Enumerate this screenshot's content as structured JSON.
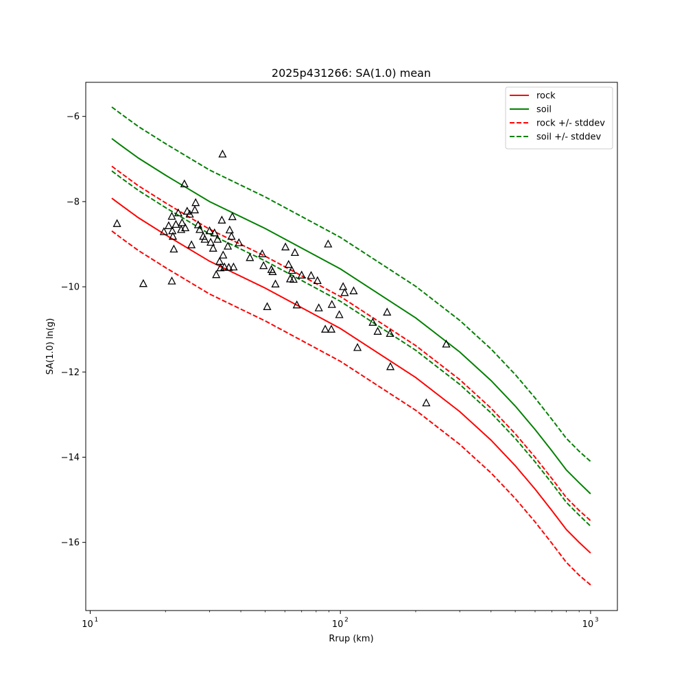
{
  "chart_data": {
    "type": "scatter",
    "title": "2025p431266: SA(1.0) mean",
    "xlabel": "Rrup (km)",
    "ylabel": "SA(1.0) ln(g)",
    "xscale": "log",
    "xlim": [
      9.6,
      1280
    ],
    "ylim": [
      -17.6,
      -5.2
    ],
    "x_ticks": [
      {
        "value": 10,
        "base": "10",
        "exp": "1"
      },
      {
        "value": 100,
        "base": "10",
        "exp": "2"
      },
      {
        "value": 1000,
        "base": "10",
        "exp": "3"
      }
    ],
    "y_ticks": [
      {
        "value": -6,
        "label": "−6"
      },
      {
        "value": -8,
        "label": "−8"
      },
      {
        "value": -10,
        "label": "−10"
      },
      {
        "value": -12,
        "label": "−12"
      },
      {
        "value": -14,
        "label": "−14"
      },
      {
        "value": -16,
        "label": "−16"
      }
    ],
    "grid": false,
    "legend_position": "top-right",
    "series": [
      {
        "name": "rock",
        "color": "#ff0000",
        "dash": "solid",
        "x": [
          12.2,
          13.2,
          15.6,
          20,
          30,
          50,
          100,
          200,
          300,
          400,
          500,
          600,
          700,
          800,
          900,
          1000
        ],
        "y": [
          -7.92,
          -8.07,
          -8.38,
          -8.78,
          -9.4,
          -10.03,
          -10.98,
          -12.13,
          -12.93,
          -13.6,
          -14.2,
          -14.75,
          -15.25,
          -15.7,
          -16.0,
          -16.25
        ]
      },
      {
        "name": "soil",
        "color": "#008000",
        "dash": "solid",
        "x": [
          12.2,
          13.2,
          15.6,
          20,
          30,
          50,
          100,
          200,
          300,
          400,
          500,
          600,
          700,
          800,
          900,
          1000
        ],
        "y": [
          -6.52,
          -6.67,
          -6.98,
          -7.38,
          -8.0,
          -8.63,
          -9.58,
          -10.73,
          -11.53,
          -12.2,
          -12.8,
          -13.35,
          -13.85,
          -14.3,
          -14.6,
          -14.86
        ]
      },
      {
        "name": "rock +/- stddev",
        "color": "#ff0000",
        "dash": "dashed",
        "x": [
          12.2,
          13.2,
          15.6,
          20,
          30,
          50,
          100,
          200,
          300,
          400,
          500,
          600,
          700,
          800,
          900,
          1000
        ],
        "y": [
          -7.17,
          -7.32,
          -7.63,
          -8.03,
          -8.65,
          -9.28,
          -10.23,
          -11.38,
          -12.18,
          -12.85,
          -13.45,
          -14.0,
          -14.5,
          -14.95,
          -15.25,
          -15.49
        ]
      },
      {
        "name": "",
        "color": "#ff0000",
        "dash": "dashed",
        "x": [
          12.2,
          13.2,
          15.6,
          20,
          30,
          50,
          100,
          200,
          300,
          400,
          500,
          600,
          700,
          800,
          900,
          1000
        ],
        "y": [
          -8.69,
          -8.84,
          -9.15,
          -9.55,
          -10.17,
          -10.8,
          -11.75,
          -12.9,
          -13.7,
          -14.37,
          -14.97,
          -15.52,
          -16.02,
          -16.47,
          -16.77,
          -17.0
        ]
      },
      {
        "name": "soil +/- stddev",
        "color": "#008000",
        "dash": "dashed",
        "x": [
          12.2,
          13.2,
          15.6,
          20,
          30,
          50,
          100,
          200,
          300,
          400,
          500,
          600,
          700,
          800,
          900,
          1000
        ],
        "y": [
          -5.78,
          -5.93,
          -6.24,
          -6.64,
          -7.26,
          -7.89,
          -8.84,
          -9.99,
          -10.79,
          -11.46,
          -12.06,
          -12.61,
          -13.11,
          -13.56,
          -13.86,
          -14.1
        ]
      },
      {
        "name": "",
        "color": "#008000",
        "dash": "dashed",
        "x": [
          12.2,
          13.2,
          15.6,
          20,
          30,
          50,
          100,
          200,
          300,
          400,
          500,
          600,
          700,
          800,
          900,
          1000
        ],
        "y": [
          -7.28,
          -7.43,
          -7.74,
          -8.14,
          -8.76,
          -9.39,
          -10.34,
          -11.49,
          -12.29,
          -12.96,
          -13.56,
          -14.11,
          -14.61,
          -15.06,
          -15.36,
          -15.62
        ]
      }
    ],
    "observations": {
      "marker": "triangle",
      "color": "#000000",
      "x": [
        12.8,
        16.3,
        19.7,
        20.6,
        21.3,
        21.4,
        21.6,
        21.2,
        22.0,
        22.5,
        23.1,
        23.3,
        23.8,
        24.0,
        24.4,
        25.0,
        25.4,
        26.2,
        26.4,
        27.0,
        27.4,
        28.3,
        28.7,
        30.0,
        30.3,
        31.0,
        31.4,
        31.9,
        32.3,
        32.9,
        33.2,
        33.6,
        34.0,
        34.4,
        35.5,
        35.8,
        36.1,
        36.7,
        37.0,
        37.4,
        39.3,
        43.5,
        48.7,
        49.3,
        51.0,
        53.0,
        53.6,
        55.0,
        60.3,
        62.1,
        63.0,
        64.0,
        65.0,
        65.8,
        67.0,
        70.0,
        76.4,
        81.0,
        82.0,
        87.0,
        89.3,
        92.0,
        92.5,
        99.0,
        102.6,
        104.0,
        113.0,
        117.0,
        134.7,
        141.0,
        153.7,
        158.0,
        158.5,
        220.5,
        265.0,
        21.2,
        33.8
      ],
      "y": [
        -8.52,
        -9.93,
        -8.71,
        -8.57,
        -8.69,
        -8.82,
        -9.12,
        -9.87,
        -8.54,
        -8.27,
        -8.66,
        -8.5,
        -7.59,
        -8.62,
        -8.23,
        -8.3,
        -9.02,
        -8.2,
        -8.03,
        -8.55,
        -8.66,
        -8.82,
        -8.89,
        -8.69,
        -8.96,
        -9.1,
        -8.74,
        -9.72,
        -8.89,
        -9.41,
        -9.56,
        -8.44,
        -9.26,
        -9.54,
        -9.05,
        -9.55,
        -8.67,
        -8.82,
        -8.36,
        -9.54,
        -8.97,
        -9.32,
        -9.23,
        -9.51,
        -10.47,
        -9.6,
        -9.65,
        -9.94,
        -9.07,
        -9.48,
        -9.82,
        -9.62,
        -9.83,
        -9.2,
        -10.43,
        -9.73,
        -9.74,
        -9.86,
        -10.5,
        -11.0,
        -9.0,
        -11.0,
        -10.42,
        -10.66,
        -10.0,
        -10.14,
        -10.1,
        -11.43,
        -10.84,
        -11.05,
        -10.6,
        -11.1,
        -11.88,
        -12.73,
        -11.35,
        -8.35,
        -6.89
      ]
    }
  }
}
